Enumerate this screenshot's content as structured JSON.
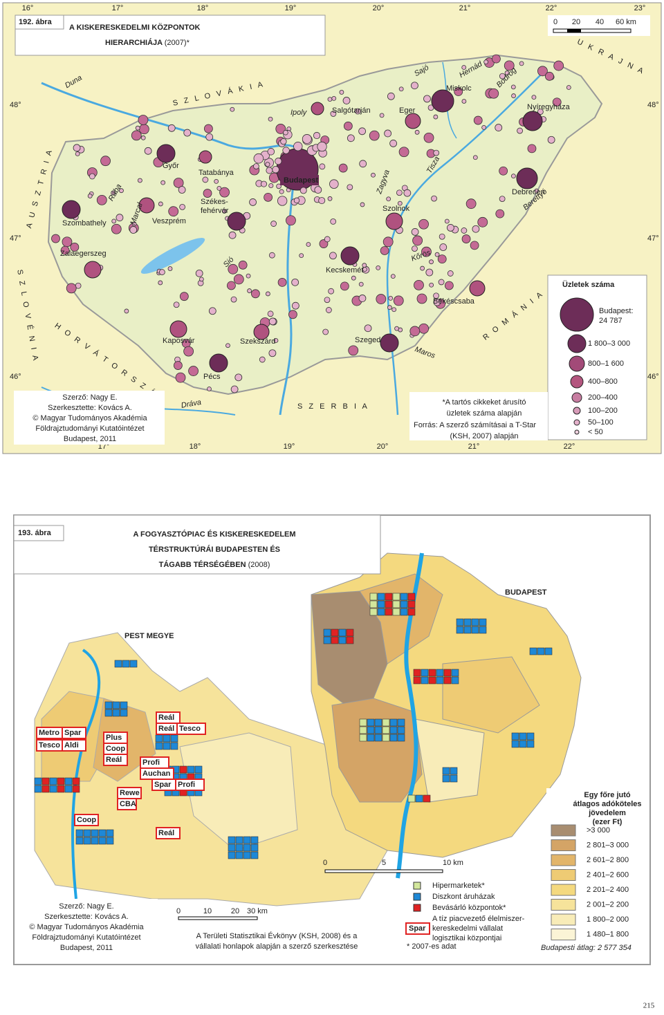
{
  "map1": {
    "figure": "192. ábra",
    "title": [
      "A KISKERESKEDELMI KÖZPONTOK",
      "HIERARCHIÁJA"
    ],
    "title_suffix": "(2007)*",
    "scale": [
      "0",
      "20",
      "40",
      "60 km"
    ],
    "lon_top": [
      "16°",
      "17°",
      "18°",
      "19°",
      "20°",
      "21°",
      "22°",
      "23°"
    ],
    "lon_bottom": [
      "17°",
      "18°",
      "19°",
      "20°",
      "21°",
      "22°"
    ],
    "lat_left": [
      "48°",
      "47°",
      "46°"
    ],
    "lat_right": [
      "48°",
      "47°",
      "46°"
    ],
    "countries": [
      "S Z L O V Á K I A",
      "U K R A J N A",
      "R O M Á N I A",
      "S Z E R B I A",
      "H O R V Á T O R S Z Á G",
      "A U S Z T R I A",
      "S Z L O V É N I A"
    ],
    "rivers": [
      "Duna",
      "Rába",
      "Marcal",
      "Ipoly",
      "Sajó",
      "Hernád",
      "Bodrog",
      "Tisza",
      "Zagyva",
      "Kőrös",
      "Berettyó",
      "Maros",
      "Dráva",
      "Sió"
    ],
    "cities": [
      "Miskolc",
      "Salgótarján",
      "Eger",
      "Nyíregyháza",
      "Győr",
      "Tatabánya",
      "Budapest",
      "Székes-",
      "fehérvár",
      "Veszprém",
      "Szombathely",
      "Zalaegerszeg",
      "Kecskemét",
      "Szolnok",
      "Debrecen",
      "Békéscsaba",
      "Kaposvár",
      "Szekszárd",
      "Szeged",
      "Pécs"
    ],
    "legend": {
      "title": "Üzletek száma",
      "budapest": [
        "Budapest:",
        "24 787"
      ],
      "items": [
        "1 800–3 000",
        "800–1 600",
        "400–800",
        "200–400",
        "100–200",
        "50–100",
        "< 50"
      ]
    },
    "credits": [
      "Szerző: Nagy E.",
      "Szerkesztette: Kovács A.",
      "© Magyar Tudományos Akadémia",
      "Földrajztudományi Kutatóintézet",
      "Budapest, 2011"
    ],
    "notes": [
      "*A tartós cikkeket árusító",
      "üzletek száma alapján",
      "Forrás: A szerző számításai a T-Star",
      "(KSH, 2007) alapján"
    ]
  },
  "map2": {
    "figure": "193. ábra",
    "title": [
      "A FOGYASZTÓPIAC ÉS KISKERESKEDELEM",
      "TÉRSTRUKTÚRÁI BUDAPESTEN ÉS",
      "TÁGABB TÉRSÉGÉBEN"
    ],
    "title_suffix": "(2008)",
    "regions": [
      "BUDAPEST",
      "PEST MEGYE"
    ],
    "chains": [
      "Metro",
      "Spar",
      "Tesco",
      "Aldi",
      "Plus",
      "Coop",
      "Reál",
      "Reál",
      "Reál",
      "Tesco",
      "Profi",
      "Auchan",
      "Spar",
      "Profi",
      "Rewe",
      "CBA",
      "Coop",
      "Reál"
    ],
    "scale_budapest": [
      "0",
      "5",
      "10 km"
    ],
    "scale_pest": [
      "0",
      "10",
      "20",
      "30 km"
    ],
    "income_legend": {
      "title": [
        "Egy főre jutó",
        "átlagos adóköteles",
        "jövedelem",
        "(ezer Ft)"
      ],
      "items": [
        ">3 000",
        "2 801–3 000",
        "2 601–2 800",
        "2 401–2 600",
        "2 201–2 400",
        "2 001–2 200",
        "1 800–2 000",
        "1 480–1 800"
      ],
      "colors": [
        "#a88d70",
        "#d4a466",
        "#e2b56a",
        "#eecb74",
        "#f4d97f",
        "#f6e39b",
        "#f8ecb8",
        "#fbf4d6"
      ],
      "average": "Budapesti átlag: 2 577 354"
    },
    "symbol_legend": {
      "items": [
        "Hipermarketek*",
        "Diszkont áruházak",
        "Bevásárló központok*"
      ],
      "colors": [
        "#d3e79c",
        "#1e88d6",
        "#e02222"
      ],
      "logistics": [
        "A tíz piacvezető élelmiszer-",
        "kereskedelmi vállalat",
        "logisztikai központjai"
      ],
      "logistics_sample": "Spar",
      "footnote": "* 2007-es adat"
    },
    "source": [
      "A Területi Statisztikai Évkönyv (KSH, 2008) és a",
      "vállalati honlapok alapján a szerző szerkesztése"
    ],
    "credits": [
      "Szerző: Nagy E.",
      "Szerkesztette: Kovács A.",
      "© Magyar Tudományos Akadémia",
      "Földrajztudományi Kutatóintézet",
      "Budapest, 2011"
    ]
  },
  "page_number": "215"
}
